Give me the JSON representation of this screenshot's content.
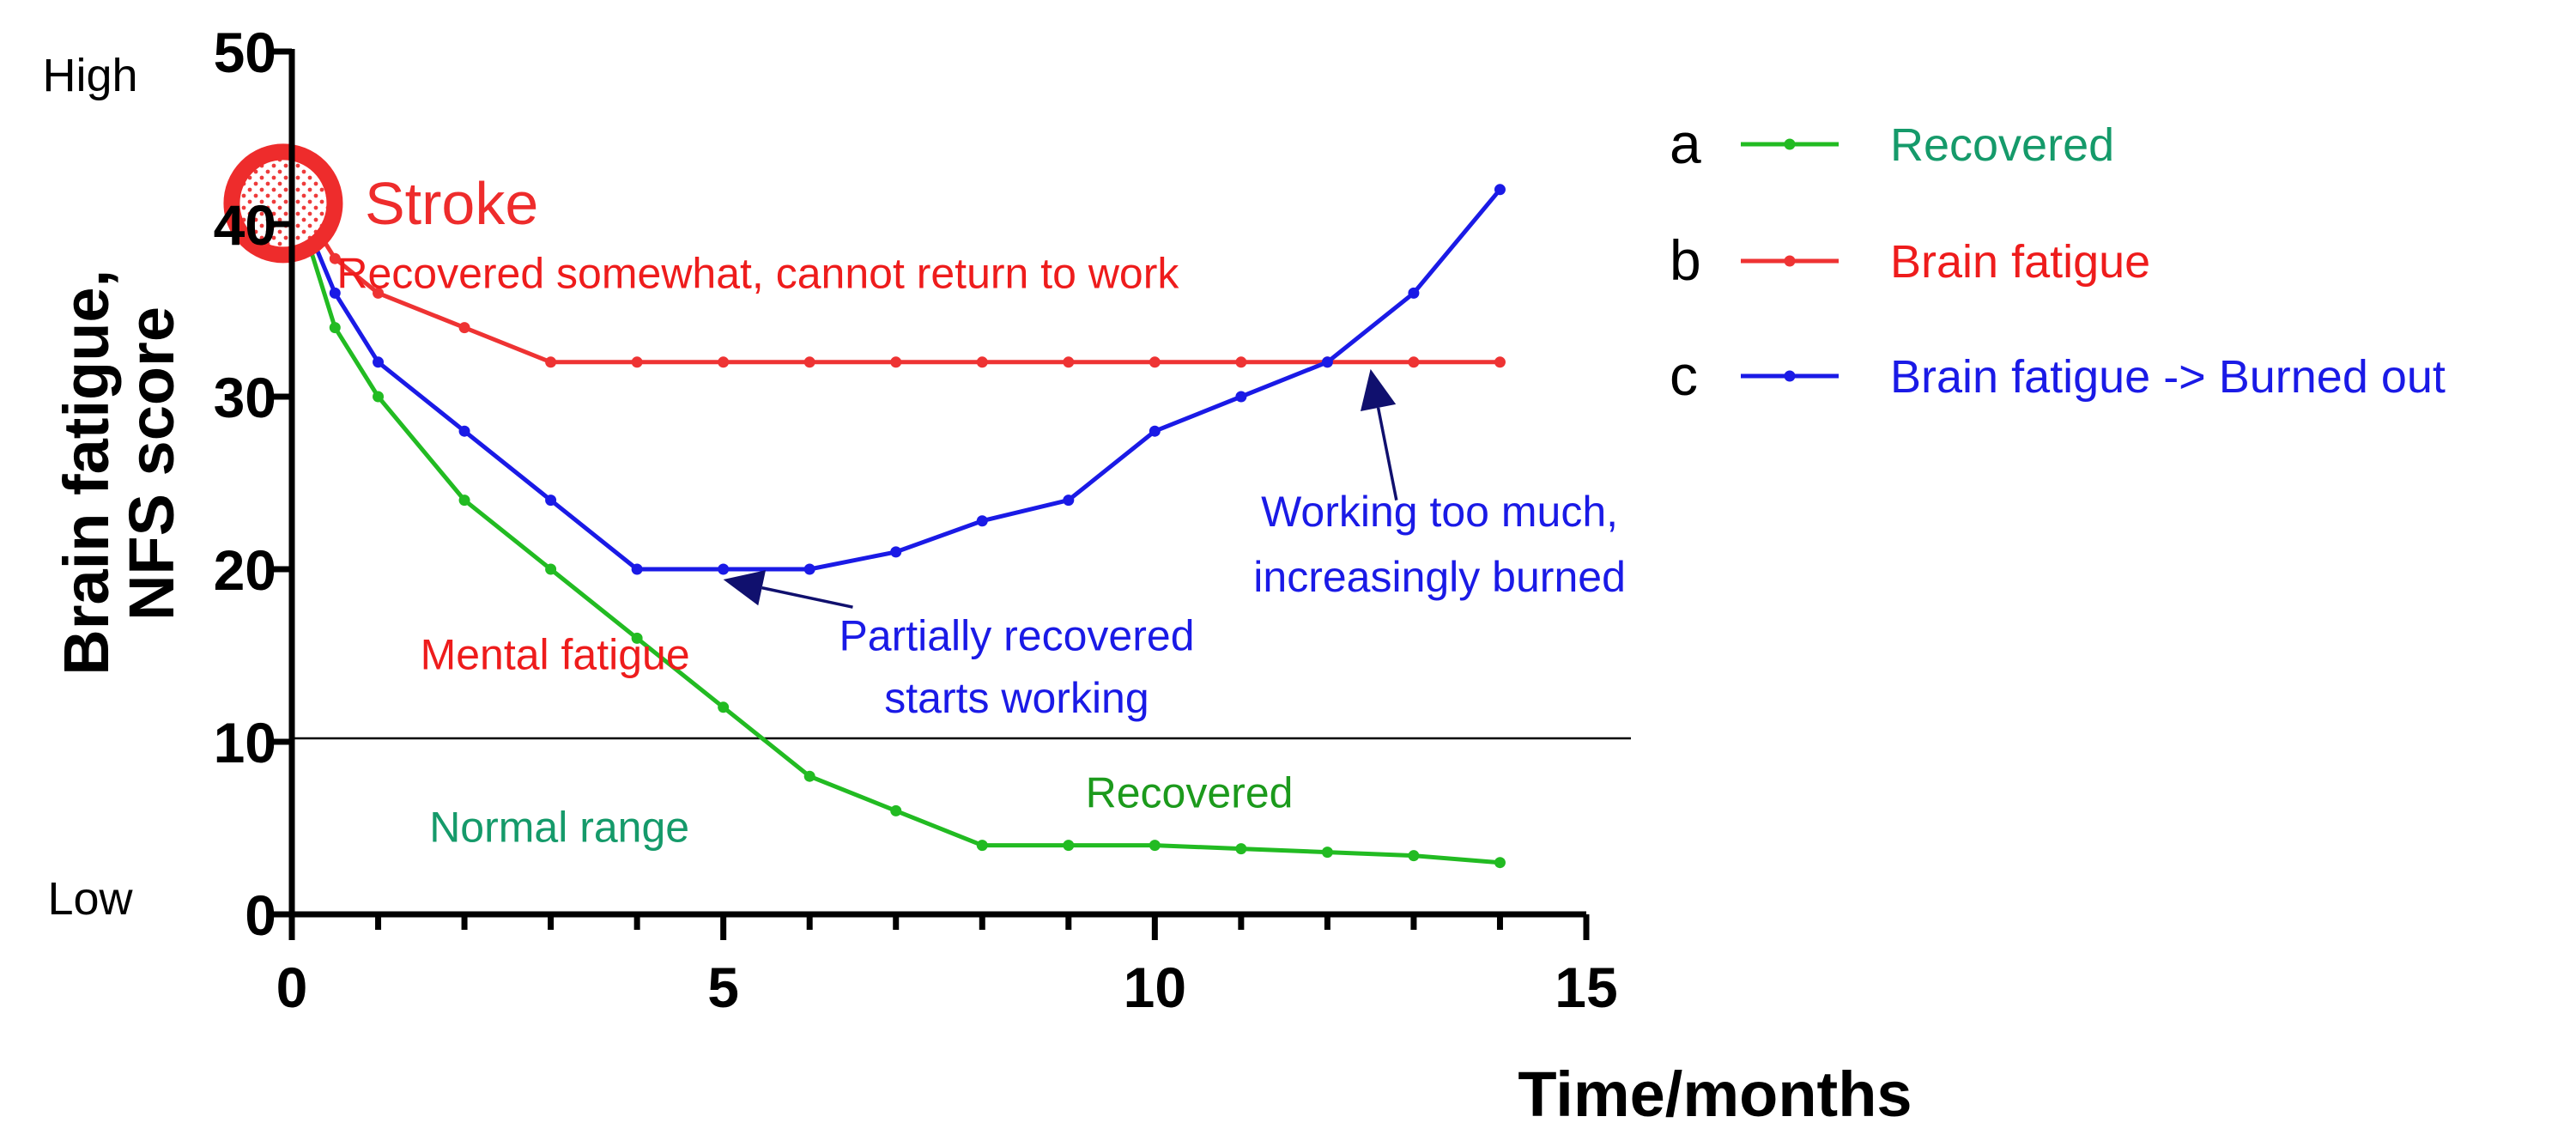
{
  "chart_data": {
    "type": "line",
    "title": "",
    "xlabel": "Time/months",
    "ylabel": [
      "Brain fatigue,",
      "NFS score"
    ],
    "xlim": [
      0,
      15
    ],
    "ylim": [
      0,
      50
    ],
    "x_ticks": [
      0,
      5,
      10,
      15
    ],
    "y_ticks": [
      0,
      10,
      20,
      30,
      40,
      50
    ],
    "grid": false,
    "legend_position": "right",
    "y_scale_words": {
      "high": "High",
      "low": "Low"
    },
    "threshold_line": {
      "y": 10,
      "color": "#000000"
    },
    "series": [
      {
        "letter": "a",
        "name": "Recovered",
        "color": "#22bb22",
        "label_color": "#159a6a",
        "x": [
          0,
          0.5,
          1,
          2,
          3,
          4,
          5,
          6,
          7,
          8,
          9,
          10,
          11,
          12,
          13,
          14
        ],
        "y": [
          42,
          34,
          30,
          24,
          20,
          16,
          12,
          8,
          6,
          4,
          4,
          4,
          3.8,
          3.6,
          3.4,
          3
        ]
      },
      {
        "letter": "b",
        "name": "Brain fatigue",
        "color": "#ee3333",
        "label_color": "#ee1c1c",
        "x": [
          0,
          0.5,
          1,
          2,
          3,
          4,
          5,
          6,
          7,
          8,
          9,
          10,
          11,
          12,
          13,
          14
        ],
        "y": [
          42,
          38,
          36,
          34,
          32,
          32,
          32,
          32,
          32,
          32,
          32,
          32,
          32,
          32,
          32,
          32
        ]
      },
      {
        "letter": "c",
        "name": "Brain fatigue -> Burned out",
        "color": "#1a1ae6",
        "label_color": "#1a1ae6",
        "x": [
          0,
          0.5,
          1,
          2,
          3,
          4,
          5,
          6,
          7,
          8,
          9,
          10,
          11,
          12,
          13,
          14
        ],
        "y": [
          42,
          36,
          32,
          28,
          24,
          20,
          20,
          20,
          21,
          22.8,
          24,
          28,
          30,
          32,
          36,
          42
        ]
      }
    ],
    "stroke_marker": {
      "x": -0.1,
      "y": 41.2,
      "label": "Stroke",
      "color": "#ee2c2c"
    },
    "annotations": [
      {
        "id": "recovered-somewhat",
        "lines": [
          "Recovered somewhat, cannot return to work"
        ],
        "color": "#ee1c1c",
        "x": 5.4,
        "y": 36.3,
        "anchor": "middle"
      },
      {
        "id": "mental-fatigue",
        "lines": [
          "Mental fatigue"
        ],
        "color": "#ee1c1c",
        "x": 3.05,
        "y": 14.2,
        "anchor": "middle"
      },
      {
        "id": "normal-range",
        "lines": [
          "Normal range"
        ],
        "color": "#159a6a",
        "x": 3.1,
        "y": 4.2,
        "anchor": "middle"
      },
      {
        "id": "recovered-green",
        "lines": [
          "Recovered"
        ],
        "color": "#1c9a1c",
        "x": 10.4,
        "y": 6.2,
        "anchor": "middle"
      },
      {
        "id": "partially-recovered",
        "lines": [
          "Partially recovered",
          "starts working"
        ],
        "color": "#1a1ae6",
        "x": 8.4,
        "y": 15.3,
        "anchor": "middle",
        "line_gap_y": 3.6
      },
      {
        "id": "working-too-much",
        "lines": [
          "Working too much,",
          "increasingly burned"
        ],
        "color": "#1a1ae6",
        "x": 13.3,
        "y": 22.5,
        "anchor": "middle",
        "line_gap_y": 3.8
      }
    ],
    "arrows": [
      {
        "id": "arrow-partially",
        "from": [
          6.5,
          17.8
        ],
        "to": [
          5.0,
          19.4
        ],
        "color": "#10106e"
      },
      {
        "id": "arrow-working",
        "from": [
          12.8,
          24.0
        ],
        "to": [
          12.5,
          31.6
        ],
        "color": "#10106e"
      }
    ]
  }
}
